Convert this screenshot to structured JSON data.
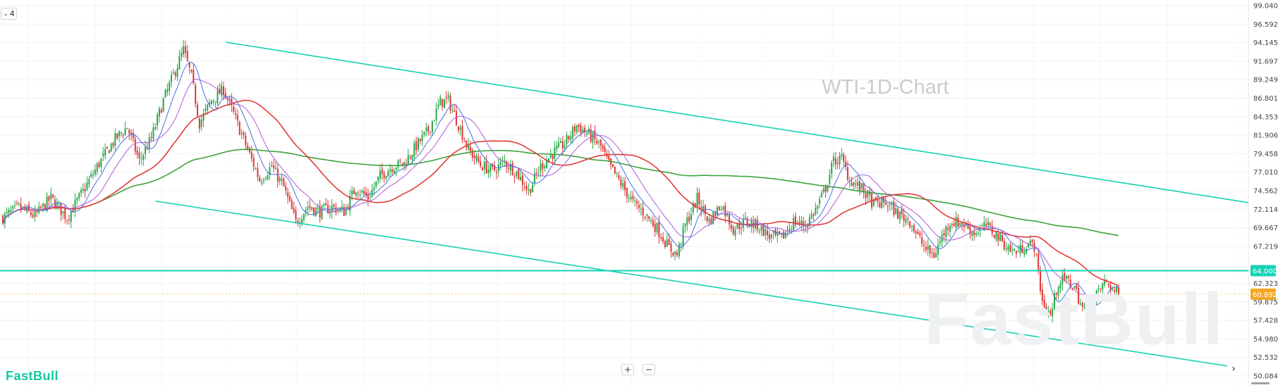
{
  "chart_data": {
    "type": "candlestick",
    "title": "WTI-1D-Chart",
    "interval_button": "4",
    "y_axis": {
      "ticks": [
        "99.040",
        "96.592",
        "94.145",
        "91.697",
        "89.249",
        "86.801",
        "84.353",
        "81.906",
        "79.458",
        "77.010",
        "74.562",
        "72.114",
        "69.667",
        "67.219",
        "62.323",
        "59.875",
        "57.428",
        "54.980",
        "52.532",
        "50.084"
      ],
      "range": [
        50.084,
        99.04
      ],
      "position": "right",
      "grid": true
    },
    "price_labels": [
      {
        "name": "horizontal-level",
        "value": "64.000",
        "color": "#14d2b4"
      },
      {
        "name": "last-price",
        "value": "60.892",
        "color": "#f5a623"
      }
    ],
    "horizontal_level": 64.0,
    "last_price": 60.892,
    "channel_lines": [
      {
        "name": "upper-channel",
        "from": 94.2,
        "to": 73.0,
        "color": "#14d2b4"
      },
      {
        "name": "lower-channel",
        "from": 73.2,
        "to": 51.4,
        "color": "#14d2b4"
      }
    ],
    "series_colors": {
      "up": "#26a84a",
      "down": "#e03535",
      "ma_fast": "#4a6fe3",
      "ma_mid": "#b05ad6",
      "ma_slow": "#e53a3a",
      "ma_long": "#3ea33e"
    },
    "price_path": [
      [
        0,
        71.0
      ],
      [
        8,
        72.4
      ],
      [
        16,
        71.2
      ],
      [
        24,
        73.6
      ],
      [
        32,
        71.0
      ],
      [
        40,
        74.5
      ],
      [
        48,
        78.2
      ],
      [
        56,
        81.4
      ],
      [
        62,
        83.0
      ],
      [
        68,
        78.5
      ],
      [
        74,
        81.5
      ],
      [
        80,
        86.5
      ],
      [
        86,
        90.5
      ],
      [
        90,
        93.2
      ],
      [
        94,
        89.6
      ],
      [
        98,
        83.5
      ],
      [
        104,
        86.5
      ],
      [
        110,
        88.0
      ],
      [
        116,
        84.0
      ],
      [
        122,
        80.0
      ],
      [
        128,
        76.0
      ],
      [
        134,
        77.8
      ],
      [
        140,
        75.0
      ],
      [
        146,
        70.4
      ],
      [
        152,
        72.5
      ],
      [
        158,
        71.8
      ],
      [
        164,
        72.4
      ],
      [
        170,
        71.8
      ],
      [
        176,
        75.0
      ],
      [
        182,
        73.6
      ],
      [
        188,
        76.5
      ],
      [
        194,
        77.8
      ],
      [
        200,
        78.2
      ],
      [
        206,
        80.5
      ],
      [
        212,
        82.5
      ],
      [
        218,
        86.3
      ],
      [
        222,
        86.5
      ],
      [
        226,
        84.0
      ],
      [
        232,
        80.0
      ],
      [
        238,
        78.0
      ],
      [
        244,
        77.2
      ],
      [
        250,
        78.4
      ],
      [
        256,
        77.0
      ],
      [
        262,
        74.5
      ],
      [
        268,
        77.8
      ],
      [
        274,
        79.5
      ],
      [
        280,
        80.8
      ],
      [
        286,
        83.2
      ],
      [
        292,
        82.0
      ],
      [
        298,
        80.4
      ],
      [
        302,
        78.0
      ],
      [
        308,
        75.5
      ],
      [
        314,
        73.0
      ],
      [
        320,
        71.5
      ],
      [
        326,
        69.6
      ],
      [
        332,
        67.0
      ],
      [
        336,
        66.1
      ],
      [
        340,
        70.0
      ],
      [
        346,
        73.5
      ],
      [
        352,
        70.5
      ],
      [
        358,
        72.8
      ],
      [
        364,
        69.5
      ],
      [
        370,
        70.5
      ],
      [
        376,
        70.0
      ],
      [
        382,
        68.5
      ],
      [
        388,
        68.3
      ],
      [
        394,
        70.5
      ],
      [
        400,
        70.0
      ],
      [
        406,
        72.5
      ],
      [
        410,
        75.0
      ],
      [
        414,
        78.5
      ],
      [
        418,
        78.8
      ],
      [
        422,
        76.0
      ],
      [
        428,
        74.8
      ],
      [
        434,
        72.8
      ],
      [
        440,
        73.0
      ],
      [
        446,
        71.5
      ],
      [
        452,
        70.6
      ],
      [
        456,
        68.5
      ],
      [
        460,
        66.8
      ],
      [
        464,
        66.0
      ],
      [
        468,
        68.5
      ],
      [
        472,
        70.5
      ],
      [
        478,
        70.3
      ],
      [
        484,
        69.0
      ],
      [
        490,
        70.0
      ],
      [
        496,
        68.5
      ],
      [
        502,
        66.7
      ],
      [
        506,
        66.5
      ],
      [
        510,
        67.5
      ],
      [
        514,
        67.3
      ],
      [
        518,
        60.0
      ],
      [
        522,
        58.0
      ],
      [
        526,
        62.5
      ],
      [
        530,
        62.8
      ],
      [
        534,
        61.8
      ],
      [
        538,
        59.0
      ],
      [
        542,
        58.5
      ],
      [
        546,
        61.5
      ],
      [
        550,
        62.5
      ],
      [
        554,
        61.2
      ],
      [
        556,
        60.9
      ]
    ]
  },
  "brand": {
    "name": "FastBull",
    "watermark": "FastBull"
  },
  "controls": {
    "zoom_in": "+",
    "zoom_out": "−",
    "scroll_right": "›"
  }
}
